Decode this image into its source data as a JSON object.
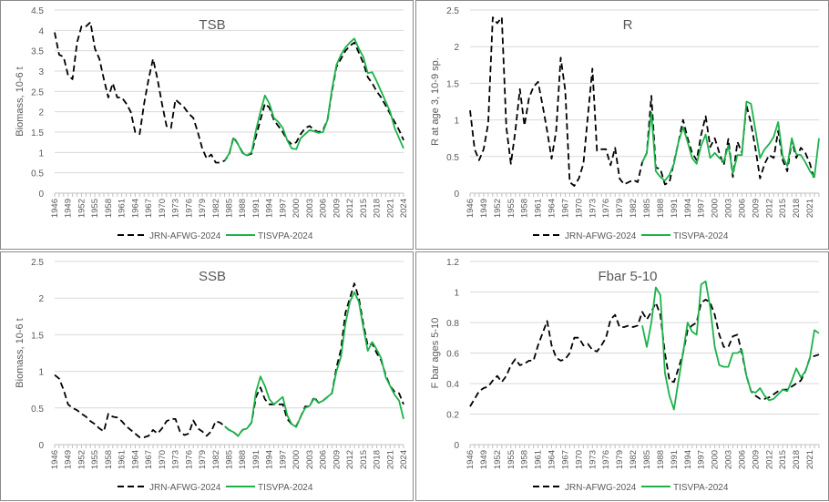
{
  "legend": {
    "series1": "JRN-AFWG-2024",
    "series2": "TISVPA-2024"
  },
  "colors": {
    "series1": "#000000",
    "series2": "#1db24a",
    "grid": "#d9d9d9",
    "text": "#595959"
  },
  "chart_data": [
    {
      "type": "line",
      "title": "TSB",
      "ylabel": "Biomass, 10-6 t",
      "ylim": [
        0,
        4.5
      ],
      "yticks": [
        "0",
        "0.5",
        "1",
        "1.5",
        "2",
        "2.5",
        "3",
        "3.5",
        "4",
        "4.5"
      ],
      "x_start": 1946,
      "x_end": 2024,
      "tick_every": 3,
      "grid": true,
      "legend": "bottom",
      "series": [
        {
          "name": "JRN-AFWG-2024",
          "start": 1946,
          "style": "dashed",
          "values": [
            3.95,
            3.4,
            3.35,
            2.9,
            2.8,
            3.7,
            4.1,
            4.1,
            4.2,
            3.55,
            3.3,
            2.8,
            2.35,
            2.7,
            2.35,
            2.35,
            2.2,
            2.0,
            1.5,
            1.45,
            2.2,
            2.8,
            3.3,
            2.8,
            2.2,
            1.65,
            1.6,
            2.3,
            2.2,
            2.1,
            1.95,
            1.85,
            1.5,
            1.1,
            0.85,
            0.95,
            0.75,
            0.75,
            0.8,
            0.95,
            1.38,
            1.2,
            1.0,
            0.93,
            0.97,
            1.4,
            1.8,
            2.2,
            2.1,
            1.8,
            1.65,
            1.5,
            1.3,
            1.2,
            1.25,
            1.45,
            1.6,
            1.65,
            1.55,
            1.5,
            1.55,
            1.8,
            2.5,
            3.1,
            3.3,
            3.5,
            3.62,
            3.7,
            3.45,
            3.2,
            2.85,
            2.7,
            2.5,
            2.35,
            2.15,
            1.95,
            1.75,
            1.55,
            1.3
          ]
        },
        {
          "name": "TISVPA-2024",
          "start": 1984,
          "style": "solid",
          "values": [
            0.8,
            0.97,
            1.35,
            1.2,
            0.98,
            0.93,
            1.0,
            1.55,
            2.0,
            2.4,
            2.2,
            1.85,
            1.75,
            1.6,
            1.3,
            1.1,
            1.08,
            1.35,
            1.45,
            1.55,
            1.52,
            1.48,
            1.5,
            1.8,
            2.55,
            3.15,
            3.4,
            3.58,
            3.7,
            3.8,
            3.55,
            3.35,
            2.95,
            2.97,
            2.75,
            2.5,
            2.25,
            2.0,
            1.6,
            1.35,
            1.1
          ]
        }
      ]
    },
    {
      "type": "line",
      "title": "R",
      "ylabel": "R at age 3, 10-9 sp.",
      "ylim": [
        0,
        2.5
      ],
      "yticks": [
        "0",
        "0.5",
        "1",
        "1.5",
        "2",
        "2.5"
      ],
      "x_start": 1946,
      "x_end": 2023,
      "tick_every": 3,
      "grid": true,
      "legend": "bottom",
      "series": [
        {
          "name": "JRN-AFWG-2024",
          "start": 1946,
          "style": "dashed",
          "values": [
            1.13,
            0.6,
            0.45,
            0.6,
            0.95,
            2.4,
            2.32,
            2.4,
            0.9,
            0.4,
            0.85,
            1.42,
            0.92,
            1.3,
            1.45,
            1.52,
            1.2,
            0.85,
            0.47,
            0.85,
            1.85,
            1.4,
            0.15,
            0.1,
            0.2,
            0.4,
            1.05,
            1.7,
            0.58,
            0.6,
            0.6,
            0.38,
            0.62,
            0.2,
            0.12,
            0.15,
            0.18,
            0.15,
            0.42,
            0.55,
            1.33,
            0.35,
            0.33,
            0.12,
            0.15,
            0.42,
            0.7,
            1.0,
            0.75,
            0.55,
            0.45,
            0.8,
            1.05,
            0.63,
            0.75,
            0.55,
            0.38,
            0.74,
            0.22,
            0.7,
            0.55,
            1.2,
            0.95,
            0.6,
            0.2,
            0.4,
            0.52,
            0.48,
            0.85,
            0.45,
            0.3,
            0.72,
            0.48,
            0.62,
            0.55,
            0.4,
            0.18
          ]
        },
        {
          "name": "TISVPA-2024",
          "start": 1984,
          "style": "solid",
          "values": [
            0.42,
            0.55,
            1.1,
            0.3,
            0.22,
            0.17,
            0.25,
            0.4,
            0.7,
            0.9,
            0.7,
            0.48,
            0.4,
            0.65,
            0.8,
            0.48,
            0.55,
            0.48,
            0.43,
            0.65,
            0.27,
            0.52,
            0.52,
            1.25,
            1.22,
            0.85,
            0.48,
            0.6,
            0.67,
            0.77,
            0.97,
            0.5,
            0.37,
            0.75,
            0.53,
            0.52,
            0.42,
            0.3,
            0.22,
            0.75
          ]
        }
      ]
    },
    {
      "type": "line",
      "title": "SSB",
      "ylabel": "Biomass, 10-6 t",
      "ylim": [
        0,
        2.5
      ],
      "yticks": [
        "0",
        "0.5",
        "1",
        "1.5",
        "2",
        "2.5"
      ],
      "x_start": 1946,
      "x_end": 2024,
      "tick_every": 3,
      "grid": true,
      "legend": "bottom",
      "series": [
        {
          "name": "JRN-AFWG-2024",
          "start": 1946,
          "style": "dashed",
          "values": [
            0.95,
            0.9,
            0.75,
            0.55,
            0.5,
            0.47,
            0.42,
            0.38,
            0.32,
            0.28,
            0.22,
            0.18,
            0.42,
            0.38,
            0.37,
            0.32,
            0.25,
            0.2,
            0.15,
            0.1,
            0.1,
            0.12,
            0.2,
            0.15,
            0.22,
            0.32,
            0.35,
            0.35,
            0.18,
            0.13,
            0.15,
            0.33,
            0.22,
            0.18,
            0.12,
            0.18,
            0.32,
            0.3,
            0.25,
            0.2,
            0.17,
            0.12,
            0.2,
            0.22,
            0.3,
            0.65,
            0.78,
            0.62,
            0.55,
            0.55,
            0.55,
            0.55,
            0.35,
            0.28,
            0.25,
            0.38,
            0.52,
            0.52,
            0.65,
            0.57,
            0.6,
            0.65,
            0.7,
            1.05,
            1.3,
            1.8,
            2.0,
            2.2,
            2.0,
            1.65,
            1.35,
            1.38,
            1.25,
            1.15,
            0.95,
            0.8,
            0.72,
            0.7,
            0.55
          ]
        },
        {
          "name": "TISVPA-2024",
          "start": 1984,
          "style": "solid",
          "values": [
            0.25,
            0.2,
            0.17,
            0.12,
            0.2,
            0.22,
            0.3,
            0.72,
            0.93,
            0.8,
            0.62,
            0.55,
            0.6,
            0.65,
            0.4,
            0.28,
            0.24,
            0.38,
            0.5,
            0.53,
            0.63,
            0.57,
            0.6,
            0.65,
            0.7,
            1.0,
            1.2,
            1.65,
            1.95,
            2.08,
            1.95,
            1.6,
            1.28,
            1.4,
            1.3,
            1.18,
            0.92,
            0.8,
            0.68,
            0.6,
            0.35
          ]
        }
      ]
    },
    {
      "type": "line",
      "title": "Fbar  5-10",
      "ylabel": "F bar ages 5-10",
      "ylim": [
        0,
        1.2
      ],
      "yticks": [
        "0",
        "0.2",
        "0.4",
        "0.6",
        "0.8",
        "1",
        "1.2"
      ],
      "x_start": 1946,
      "x_end": 2023,
      "tick_every": 3,
      "grid": true,
      "legend": "bottom",
      "series": [
        {
          "name": "JRN-AFWG-2024",
          "start": 1946,
          "style": "dashed",
          "values": [
            0.25,
            0.3,
            0.35,
            0.37,
            0.38,
            0.42,
            0.45,
            0.41,
            0.45,
            0.52,
            0.56,
            0.52,
            0.53,
            0.55,
            0.55,
            0.65,
            0.73,
            0.81,
            0.65,
            0.57,
            0.55,
            0.56,
            0.6,
            0.7,
            0.7,
            0.65,
            0.66,
            0.62,
            0.61,
            0.65,
            0.7,
            0.82,
            0.85,
            0.77,
            0.77,
            0.78,
            0.77,
            0.78,
            0.87,
            0.82,
            0.87,
            0.93,
            0.85,
            0.6,
            0.42,
            0.41,
            0.5,
            0.6,
            0.75,
            0.78,
            0.8,
            0.93,
            0.95,
            0.93,
            0.85,
            0.72,
            0.64,
            0.64,
            0.71,
            0.72,
            0.6,
            0.45,
            0.35,
            0.32,
            0.3,
            0.3,
            0.31,
            0.33,
            0.35,
            0.36,
            0.36,
            0.38,
            0.4,
            0.42,
            0.48,
            0.57,
            0.58,
            0.59
          ]
        },
        {
          "name": "TISVPA-2024",
          "start": 1984,
          "style": "solid",
          "values": [
            0.78,
            0.64,
            0.8,
            1.03,
            0.98,
            0.47,
            0.32,
            0.23,
            0.42,
            0.6,
            0.8,
            0.74,
            0.72,
            1.05,
            1.07,
            0.9,
            0.64,
            0.52,
            0.51,
            0.51,
            0.6,
            0.6,
            0.62,
            0.45,
            0.35,
            0.34,
            0.37,
            0.32,
            0.29,
            0.3,
            0.33,
            0.36,
            0.35,
            0.42,
            0.5,
            0.44,
            0.48,
            0.57,
            0.75,
            0.73
          ]
        }
      ]
    }
  ]
}
